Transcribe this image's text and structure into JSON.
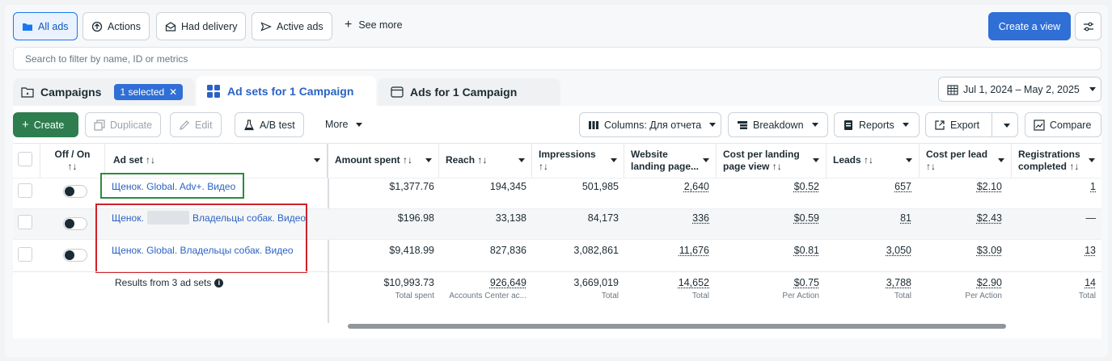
{
  "toolbar": {
    "all_ads": "All ads",
    "actions": "Actions",
    "had_delivery": "Had delivery",
    "active_ads": "Active ads",
    "see_more": "See more",
    "create_view": "Create a view"
  },
  "search": {
    "placeholder": "Search to filter by name, ID or metrics"
  },
  "tabs": {
    "campaigns": "Campaigns",
    "selected_chip": "1 selected",
    "ad_sets": "Ad sets for 1 Campaign",
    "ads": "Ads for 1 Campaign",
    "date_range": "Jul 1, 2024 – May 2, 2025"
  },
  "actions": {
    "create": "Create",
    "duplicate": "Duplicate",
    "edit": "Edit",
    "ab_test": "A/B test",
    "more": "More",
    "columns": "Columns: Для отчета",
    "breakdown": "Breakdown",
    "reports": "Reports",
    "export": "Export",
    "compare": "Compare"
  },
  "columns": {
    "off_on": "Off / On",
    "ad_set": "Ad set ↑↓",
    "amount_spent": "Amount spent ↑↓",
    "reach": "Reach ↑↓",
    "impressions": "Impressions",
    "website_lpv_1": "Website",
    "website_lpv_2": "landing page...",
    "cost_lpv_1": "Cost per landing",
    "cost_lpv_2": "page view ↑↓",
    "leads": "Leads ↑↓",
    "cost_per_lead": "Cost per lead",
    "registrations_1": "Registrations",
    "registrations_2": "completed ↑↓",
    "sort_icon": "↑↓"
  },
  "rows": [
    {
      "name": "Щенок. Global. Adv+. Видео",
      "amount": "$1,377.76",
      "reach": "194,345",
      "impressions": "501,985",
      "lpv": "2,640",
      "cost_lpv": "$0.52",
      "leads": "657",
      "cpl": "$2.10",
      "reg": "1"
    },
    {
      "name_a": "Щенок.",
      "name_b": "Владельцы собак. Видео",
      "amount": "$196.98",
      "reach": "33,138",
      "impressions": "84,173",
      "lpv": "336",
      "cost_lpv": "$0.59",
      "leads": "81",
      "cpl": "$2.43",
      "reg": "—"
    },
    {
      "name": "Щенок. Global. Владельцы собак. Видео",
      "amount": "$9,418.99",
      "reach": "827,836",
      "impressions": "3,082,861",
      "lpv": "11,676",
      "cost_lpv": "$0.81",
      "leads": "3,050",
      "cpl": "$3.09",
      "reg": "13"
    }
  ],
  "totals": {
    "label": "Results from 3 ad sets",
    "amount": "$10,993.73",
    "amount_sub": "Total spent",
    "reach": "926,649",
    "reach_sub": "Accounts Center ac...",
    "impressions": "3,669,019",
    "impressions_sub": "Total",
    "lpv": "14,652",
    "lpv_sub": "Total",
    "cost_lpv": "$0.75",
    "cost_lpv_sub": "Per Action",
    "leads": "3,788",
    "leads_sub": "Total",
    "cpl": "$2.90",
    "cpl_sub": "Per Action",
    "reg": "14",
    "reg_sub": "Total"
  },
  "colors": {
    "accent": "#2f6fd6",
    "create_green": "#2e7d4f",
    "highlight_green": "#2e8b3a",
    "highlight_red": "#d0202a"
  }
}
